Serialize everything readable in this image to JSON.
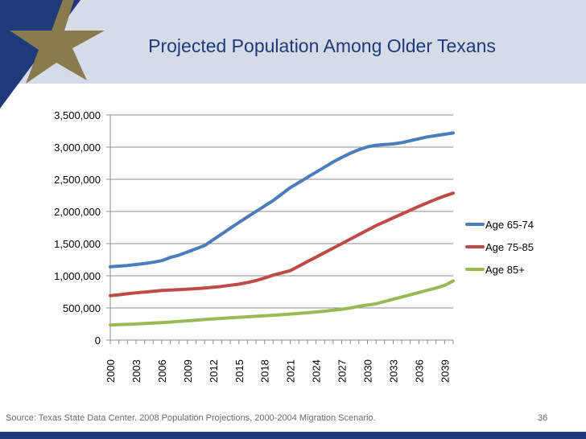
{
  "slide": {
    "title": "Projected Population Among Older Texans",
    "source": "Source: Texas State Data Center. 2008 Population Projections, 2000-2004 Migration Scenario.",
    "page_number": "36"
  },
  "colors": {
    "header_band": "#d5dbe7",
    "navy": "#1f3a7a",
    "gold": "#8a7b4e"
  },
  "chart_data": {
    "type": "line",
    "title": "",
    "xlabel": "",
    "ylabel": "",
    "ylim": [
      0,
      3500000
    ],
    "y_ticks": [
      {
        "value": 0,
        "label": "0"
      },
      {
        "value": 500000,
        "label": "500,000"
      },
      {
        "value": 1000000,
        "label": "1,000,000"
      },
      {
        "value": 1500000,
        "label": "1,500,000"
      },
      {
        "value": 2000000,
        "label": "2,000,000"
      },
      {
        "value": 2500000,
        "label": "2,500,000"
      },
      {
        "value": 3000000,
        "label": "3,000,000"
      },
      {
        "value": 3500000,
        "label": "3,500,000"
      }
    ],
    "x": [
      2000,
      2001,
      2002,
      2003,
      2004,
      2005,
      2006,
      2007,
      2008,
      2009,
      2010,
      2011,
      2012,
      2013,
      2014,
      2015,
      2016,
      2017,
      2018,
      2019,
      2020,
      2021,
      2022,
      2023,
      2024,
      2025,
      2026,
      2027,
      2028,
      2029,
      2030,
      2031,
      2032,
      2033,
      2034,
      2035,
      2036,
      2037,
      2038,
      2039,
      2040
    ],
    "x_tick_labels": [
      "2000",
      "2003",
      "2006",
      "2009",
      "2012",
      "2015",
      "2018",
      "2021",
      "2024",
      "2027",
      "2030",
      "2033",
      "2036",
      "2039"
    ],
    "x_tick_values": [
      2000,
      2003,
      2006,
      2009,
      2012,
      2015,
      2018,
      2021,
      2024,
      2027,
      2030,
      2033,
      2036,
      2039
    ],
    "legend_position": "right",
    "series": [
      {
        "name": "Age 65-74",
        "color": "#4a7ebb",
        "values": [
          1140000,
          1150000,
          1160000,
          1175000,
          1190000,
          1210000,
          1235000,
          1285000,
          1320000,
          1370000,
          1420000,
          1470000,
          1560000,
          1650000,
          1740000,
          1830000,
          1915000,
          2000000,
          2085000,
          2170000,
          2270000,
          2370000,
          2450000,
          2530000,
          2610000,
          2690000,
          2770000,
          2840000,
          2905000,
          2960000,
          3005000,
          3030000,
          3040000,
          3050000,
          3070000,
          3100000,
          3130000,
          3160000,
          3180000,
          3200000,
          3220000
        ]
      },
      {
        "name": "Age 75-85",
        "color": "#be4b48",
        "values": [
          690000,
          705000,
          720000,
          735000,
          748000,
          760000,
          772000,
          778000,
          785000,
          792000,
          800000,
          810000,
          822000,
          835000,
          852000,
          870000,
          895000,
          925000,
          965000,
          1010000,
          1045000,
          1080000,
          1150000,
          1220000,
          1290000,
          1360000,
          1430000,
          1500000,
          1570000,
          1640000,
          1710000,
          1780000,
          1840000,
          1900000,
          1960000,
          2020000,
          2080000,
          2135000,
          2190000,
          2240000,
          2285000
        ]
      },
      {
        "name": "Age 85+",
        "color": "#98b954",
        "values": [
          235000,
          240000,
          245000,
          250000,
          258000,
          265000,
          272000,
          280000,
          290000,
          300000,
          310000,
          320000,
          330000,
          338000,
          346000,
          355000,
          363000,
          370000,
          378000,
          386000,
          395000,
          405000,
          415000,
          425000,
          438000,
          450000,
          465000,
          480000,
          500000,
          525000,
          545000,
          565000,
          600000,
          635000,
          670000,
          705000,
          740000,
          775000,
          810000,
          850000,
          920000
        ]
      }
    ]
  }
}
